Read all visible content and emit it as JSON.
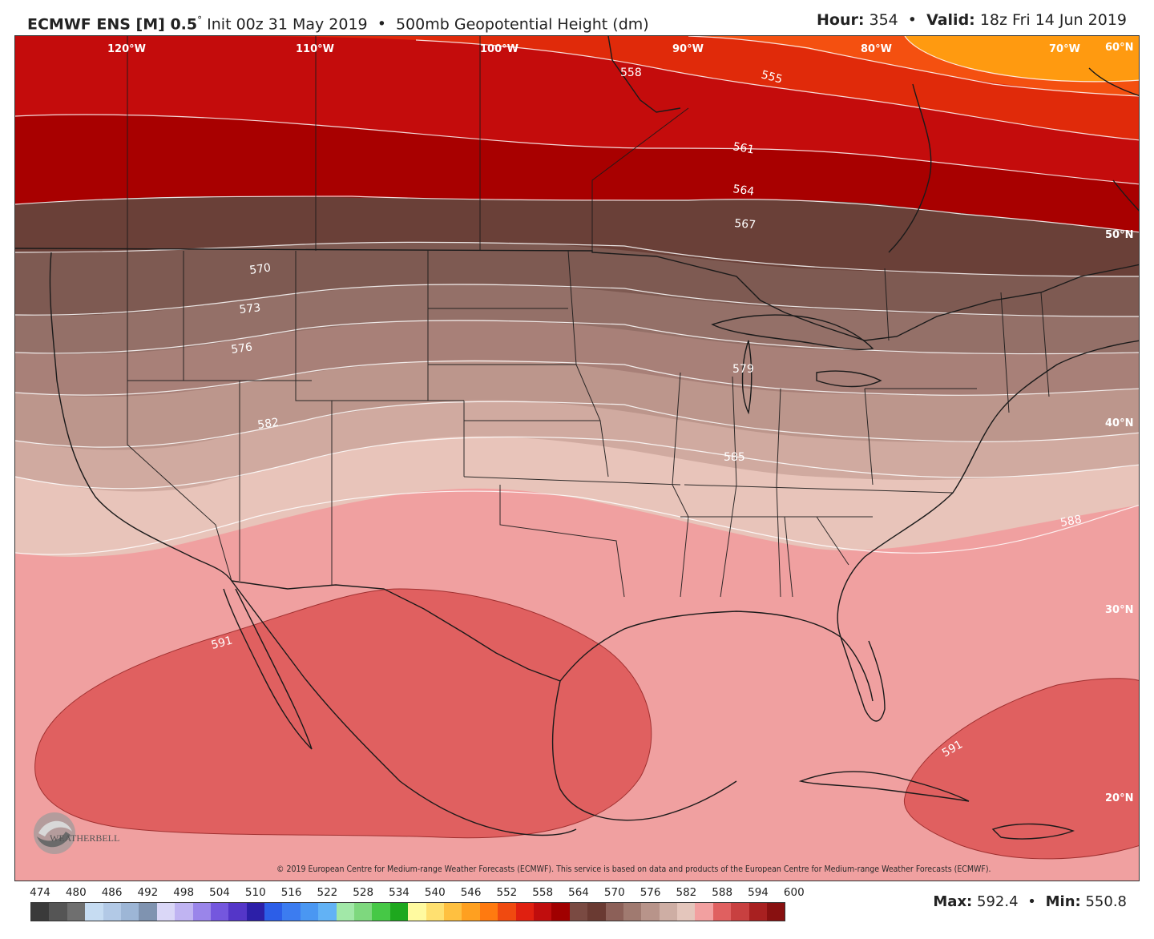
{
  "header": {
    "model": "ECMWF ENS [M] 0.5",
    "degree_mark": "°",
    "init": "Init 00z 31 May 2019",
    "separator": "•",
    "field": "500mb Geopotential Height (dm)",
    "hour_label": "Hour:",
    "hour_value": "354",
    "valid_label": "Valid:",
    "valid_value": "18z Fri 14 Jun 2019"
  },
  "map": {
    "longitude_labels": [
      "120°W",
      "110°W",
      "100°W",
      "90°W",
      "80°W",
      "70°W"
    ],
    "latitude_labels": [
      "60°N",
      "50°N",
      "40°N",
      "30°N",
      "20°N"
    ],
    "contour_labels": [
      "558",
      "555",
      "561",
      "564",
      "567",
      "570",
      "573",
      "576",
      "579",
      "582",
      "585",
      "588",
      "591",
      "591"
    ],
    "logo_text": "WEATHERBELL",
    "copyright": "© 2019 European Centre for Medium-range Weather Forecasts (ECMWF). This service is based on data and products of the European Centre for Medium-range Weather Forecasts (ECMWF)."
  },
  "colorbar": {
    "labels": [
      "474",
      "480",
      "486",
      "492",
      "498",
      "504",
      "510",
      "516",
      "522",
      "528",
      "534",
      "540",
      "546",
      "552",
      "558",
      "564",
      "570",
      "576",
      "582",
      "588",
      "594",
      "600"
    ],
    "colors": [
      "#3a3a3a",
      "#555555",
      "#6f6f6f",
      "#c6dcf2",
      "#b2c9e6",
      "#9db6d6",
      "#7f93b0",
      "#dad7f7",
      "#c0b4f2",
      "#9a85ea",
      "#7457de",
      "#5436c8",
      "#2c1fa8",
      "#2c5ee8",
      "#3c7cf0",
      "#4a97f2",
      "#62b2f5",
      "#a2e8a8",
      "#7ed87e",
      "#46c846",
      "#1ea81e",
      "#fffaa0",
      "#ffe070",
      "#ffc040",
      "#ffa020",
      "#ff7a10",
      "#f04a10",
      "#e02010",
      "#c00d0d",
      "#a00000",
      "#7a4a42",
      "#6a3a32",
      "#8c6058",
      "#a07a70",
      "#b8948a",
      "#ceaea4",
      "#e4c6bc",
      "#f2a0a0",
      "#e06060",
      "#c84040",
      "#a82020",
      "#881010"
    ]
  },
  "stats": {
    "max_label": "Max:",
    "max_value": "592.4",
    "min_label": "Min:",
    "min_value": "550.8"
  }
}
